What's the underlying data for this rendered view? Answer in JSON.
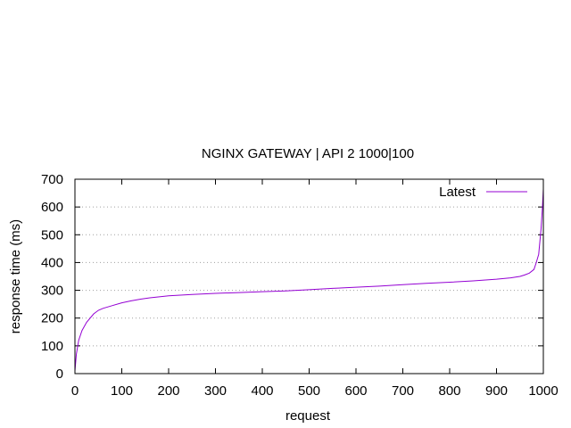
{
  "chart_data": {
    "type": "line",
    "title": "NGINX GATEWAY |  API 2 1000|100",
    "xlabel": "request",
    "ylabel": "response time (ms)",
    "xlim": [
      0,
      1000
    ],
    "ylim": [
      0,
      700
    ],
    "x_ticks": [
      0,
      100,
      200,
      300,
      400,
      500,
      600,
      700,
      800,
      900,
      1000
    ],
    "y_ticks": [
      0,
      100,
      200,
      300,
      400,
      500,
      600,
      700
    ],
    "grid": "horizontal dotted",
    "legend_position": "top-right",
    "series": [
      {
        "name": "Latest",
        "color": "#9400d3",
        "x": [
          0,
          3,
          8,
          15,
          25,
          40,
          50,
          60,
          80,
          100,
          120,
          140,
          160,
          200,
          250,
          300,
          350,
          400,
          450,
          500,
          550,
          600,
          650,
          700,
          750,
          800,
          850,
          900,
          930,
          950,
          960,
          970,
          980,
          985,
          990,
          995,
          998,
          1000
        ],
        "y": [
          10,
          70,
          120,
          155,
          185,
          215,
          228,
          235,
          245,
          255,
          262,
          268,
          273,
          280,
          285,
          289,
          292,
          295,
          298,
          302,
          307,
          311,
          315,
          320,
          325,
          329,
          334,
          340,
          345,
          350,
          355,
          362,
          375,
          400,
          430,
          520,
          600,
          665
        ]
      }
    ]
  }
}
